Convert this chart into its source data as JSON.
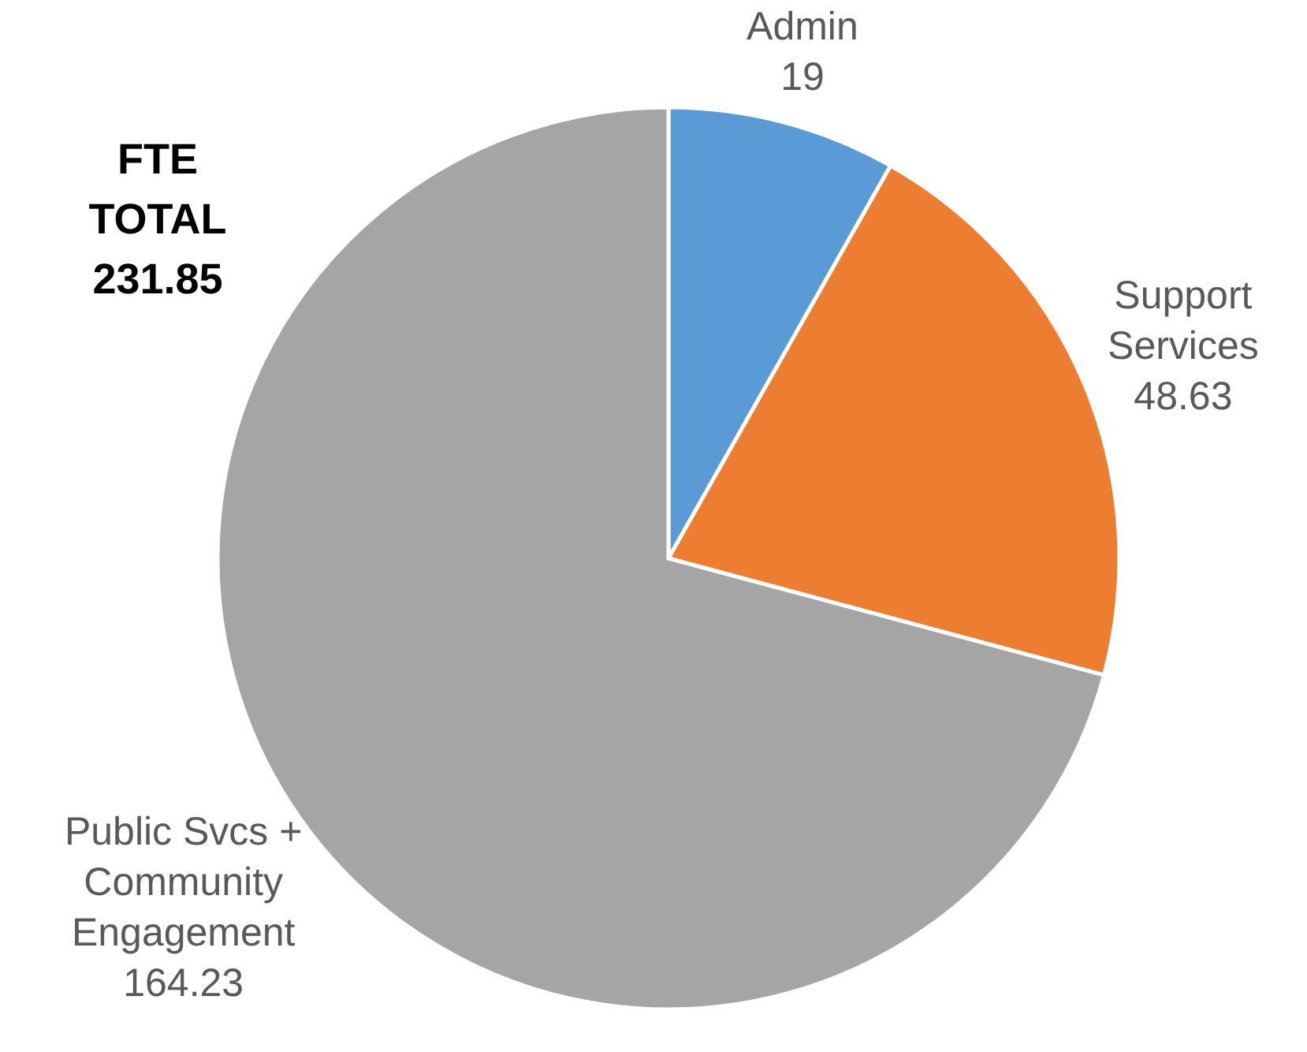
{
  "chart_data": {
    "type": "pie",
    "categories": [
      "Admin",
      "Support Services",
      "Public Svcs + Community Engagement"
    ],
    "values": [
      19,
      48.63,
      164.23
    ],
    "colors": [
      "#5b9bd5",
      "#ed7d31",
      "#a5a5a5"
    ],
    "data_labels": true,
    "annotations": [
      "FTE\nTOTAL\n231.85"
    ]
  }
}
